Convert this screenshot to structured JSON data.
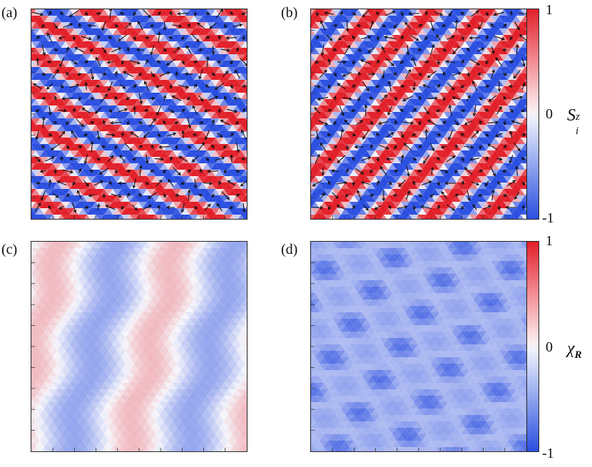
{
  "labels": {
    "a": "(a)",
    "b": "(b)",
    "c": "(c)",
    "d": "(d)"
  },
  "colorbar_top": {
    "max": "1",
    "mid": "0",
    "min": "-1",
    "symbol": "S",
    "symbol_sub": "i",
    "symbol_sup": "z"
  },
  "colorbar_bottom": {
    "max": "1",
    "mid": "0",
    "min": "-1",
    "symbol": "χ",
    "symbol_sub": "R"
  },
  "colors": {
    "red": "#e2202a",
    "blue": "#2b4fe0",
    "white": "#f6f6fb"
  },
  "panels": [
    {
      "id": "a",
      "quantity": "spin_z",
      "pattern": "stripes-descending",
      "arrows": true
    },
    {
      "id": "b",
      "quantity": "spin_z",
      "pattern": "stripes-ascending",
      "arrows": true
    },
    {
      "id": "c",
      "quantity": "chirality",
      "pattern": "vertical-wavy",
      "arrows": false
    },
    {
      "id": "d",
      "quantity": "chirality",
      "pattern": "rhombic-lattice",
      "arrows": false
    }
  ]
}
